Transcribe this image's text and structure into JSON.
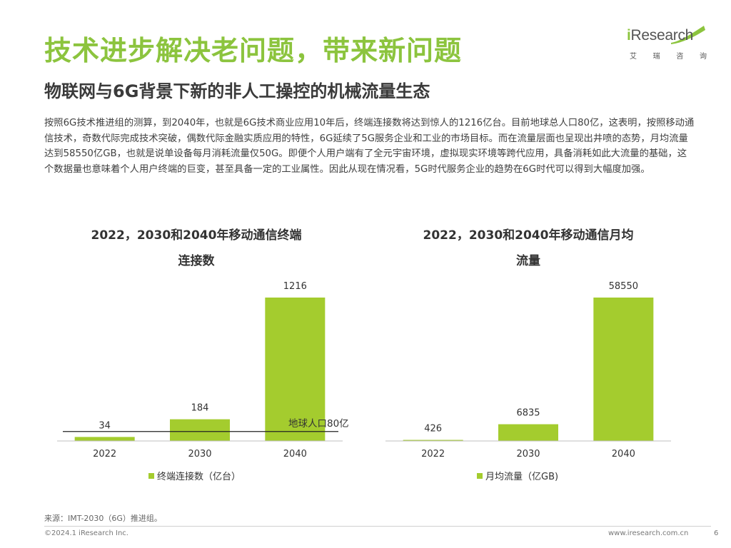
{
  "header": {
    "title": "技术进步解决老问题，带来新问题",
    "subtitle": "物联网与6G背景下新的非人工操控的机械流量生态"
  },
  "logo": {
    "text_i": "i",
    "text_rest": "Research",
    "sub_chars": [
      "艾",
      "瑞",
      "咨",
      "询"
    ]
  },
  "body_text": "按照6G技术推进组的测算，到2040年，也就是6G技术商业应用10年后，终端连接数将达到惊人的1216亿台。目前地球总人口80亿，这表明，按照移动通信技术，奇数代际完成技术突破，偶数代际金融实质应用的特性，6G延续了5G服务企业和工业的市场目标。而在流量层面也呈现出井喷的态势，月均流量达到58550亿GB，也就是说单设备每月消耗流量仅50G。即便个人用户端有了全元宇宙环境，虚拟现实环境等跨代应用，具备消耗如此大流量的基础，这个数据量也意味着个人用户终端的巨变，甚至具备一定的工业属性。因此从现在情况看，5G时代服务企业的趋势在6G时代可以得到大幅度加强。",
  "chart_data": [
    {
      "type": "bar",
      "title": "2022，2030和2040年移动通信终端连接数",
      "title_lines": [
        "2022，2030和2040年移动通信终端",
        "连接数"
      ],
      "categories": [
        "2022",
        "2030",
        "2040"
      ],
      "series": [
        {
          "name": "终端连接数（亿台）",
          "values": [
            34,
            184,
            1216
          ]
        }
      ],
      "ylim": [
        0,
        1216
      ],
      "grid": false,
      "legend_position": "bottom",
      "reference_line": {
        "value": 80,
        "label": "地球人口80亿"
      },
      "color": "#a4cc2e"
    },
    {
      "type": "bar",
      "title": "2022，2030和2040年移动通信月均流量",
      "title_lines": [
        "2022，2030和2040年移动通信月均",
        "流量"
      ],
      "categories": [
        "2022",
        "2030",
        "2040"
      ],
      "series": [
        {
          "name": "月均流量（亿GB)",
          "values": [
            426,
            6835,
            58550
          ]
        }
      ],
      "ylim": [
        0,
        58550
      ],
      "grid": false,
      "legend_position": "bottom",
      "color": "#a4cc2e"
    }
  ],
  "footer": {
    "source": "来源：IMT-2030（6G）推进组。",
    "copyright": "©2024.1 iResearch Inc.",
    "url": "www.iresearch.com.cn",
    "page": "6"
  }
}
